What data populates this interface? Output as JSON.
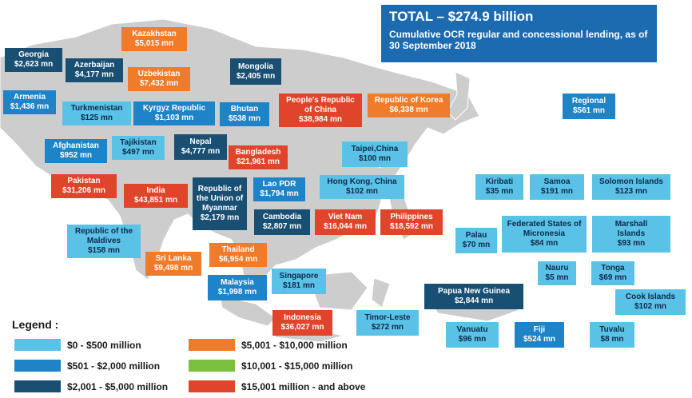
{
  "colors": {
    "land": "#cdcdcd",
    "sea": "#ffffff",
    "c1": "#5bc2e7",
    "c2": "#1f83c7",
    "c3": "#184f72",
    "c4": "#f07c2b",
    "c5": "#7cc042",
    "c6": "#e0442b",
    "total_bg": "#1c6ab0"
  },
  "total": {
    "title": "TOTAL – $274.9 billion",
    "subtitle": "Cumulative OCR regular and concessional lending, as of 30 September 2018"
  },
  "legend": {
    "title": "Legend :",
    "items": [
      {
        "color": "c1",
        "label": "$0 - $500 million"
      },
      {
        "color": "c2",
        "label": "$501 - $2,000 million"
      },
      {
        "color": "c3",
        "label": "$2,001 - $5,000 million"
      },
      {
        "color": "c4",
        "label": "$5,001 - $10,000 million"
      },
      {
        "color": "c5",
        "label": "$10,001 - $15,000 million"
      },
      {
        "color": "c6",
        "label": "$15,001 million - and above"
      }
    ]
  },
  "countries": [
    {
      "name": "Kazakhstan",
      "value": "$5,015 mn",
      "category": "c4"
    },
    {
      "name": "Georgia",
      "value": "$2,623 mn",
      "category": "c3"
    },
    {
      "name": "Azerbaijan",
      "value": "$4,177 mn",
      "category": "c3"
    },
    {
      "name": "Uzbekistan",
      "value": "$7,432 mn",
      "category": "c4"
    },
    {
      "name": "Mongolia",
      "value": "$2,405 mn",
      "category": "c3"
    },
    {
      "name": "Armenia",
      "value": "$1,436 mn",
      "category": "c2"
    },
    {
      "name": "Turkmenistan",
      "value": "$125 mn",
      "category": "c1"
    },
    {
      "name": "Kyrgyz Republic",
      "value": "$1,103 mn",
      "category": "c2"
    },
    {
      "name": "Bhutan",
      "value": "$538 mn",
      "category": "c2"
    },
    {
      "name": "People's Republic of China",
      "value": "$38,984 mn",
      "category": "c6"
    },
    {
      "name": "Republic of Korea",
      "value": "$6,338 mn",
      "category": "c4"
    },
    {
      "name": "Regional",
      "value": "$561 mn",
      "category": "c2"
    },
    {
      "name": "Afghanistan",
      "value": "$952 mn",
      "category": "c2"
    },
    {
      "name": "Tajikistan",
      "value": "$497 mn",
      "category": "c1"
    },
    {
      "name": "Nepal",
      "value": "$4,777 mn",
      "category": "c3"
    },
    {
      "name": "Bangladesh",
      "value": "$21,961 mn",
      "category": "c6"
    },
    {
      "name": "Taipei,China",
      "value": "$100 mn",
      "category": "c1"
    },
    {
      "name": "Pakistan",
      "value": "$31,206 mn",
      "category": "c6"
    },
    {
      "name": "India",
      "value": "$43,851 mn",
      "category": "c6"
    },
    {
      "name": "Republic of the Union of Myanmar",
      "value": "$2,179 mn",
      "category": "c3"
    },
    {
      "name": "Lao PDR",
      "value": "$1,794 mn",
      "category": "c2"
    },
    {
      "name": "Hong Kong, China",
      "value": "$102 mn",
      "category": "c1"
    },
    {
      "name": "Kiribati",
      "value": "$35 mn",
      "category": "c1"
    },
    {
      "name": "Samoa",
      "value": "$191 mn",
      "category": "c1"
    },
    {
      "name": "Solomon Islands",
      "value": "$123 mn",
      "category": "c1"
    },
    {
      "name": "Cambodia",
      "value": "$2,807 mn",
      "category": "c3"
    },
    {
      "name": "Viet Nam",
      "value": "$16,044 mn",
      "category": "c6"
    },
    {
      "name": "Philippines",
      "value": "$18,592 mn",
      "category": "c6"
    },
    {
      "name": "Republic of the Maldives",
      "value": "$158 mn",
      "category": "c1"
    },
    {
      "name": "Federated States of Micronesia",
      "value": "$84 mn",
      "category": "c1"
    },
    {
      "name": "Marshall Islands",
      "value": "$93 mn",
      "category": "c1"
    },
    {
      "name": "Palau",
      "value": "$70 mn",
      "category": "c1"
    },
    {
      "name": "Thailand",
      "value": "$6,954 mn",
      "category": "c4"
    },
    {
      "name": "Sri Lanka",
      "value": "$9,498 mn",
      "category": "c4"
    },
    {
      "name": "Singapore",
      "value": "$181 mn",
      "category": "c1"
    },
    {
      "name": "Nauru",
      "value": "$5 mn",
      "category": "c1"
    },
    {
      "name": "Tonga",
      "value": "$69 mn",
      "category": "c1"
    },
    {
      "name": "Malaysia",
      "value": "$1,998 mn",
      "category": "c2"
    },
    {
      "name": "Papua New Guinea",
      "value": "$2,844 mn",
      "category": "c3"
    },
    {
      "name": "Cook Islands",
      "value": "$102 mn",
      "category": "c1"
    },
    {
      "name": "Indonesia",
      "value": "$36,027 mn",
      "category": "c6"
    },
    {
      "name": "Timor-Leste",
      "value": "$272 mn",
      "category": "c1"
    },
    {
      "name": "Vanuatu",
      "value": "$96 mn",
      "category": "c1"
    },
    {
      "name": "Fiji",
      "value": "$524 mn",
      "category": "c2"
    },
    {
      "name": "Tuvalu",
      "value": "$8 mn",
      "category": "c1"
    }
  ]
}
